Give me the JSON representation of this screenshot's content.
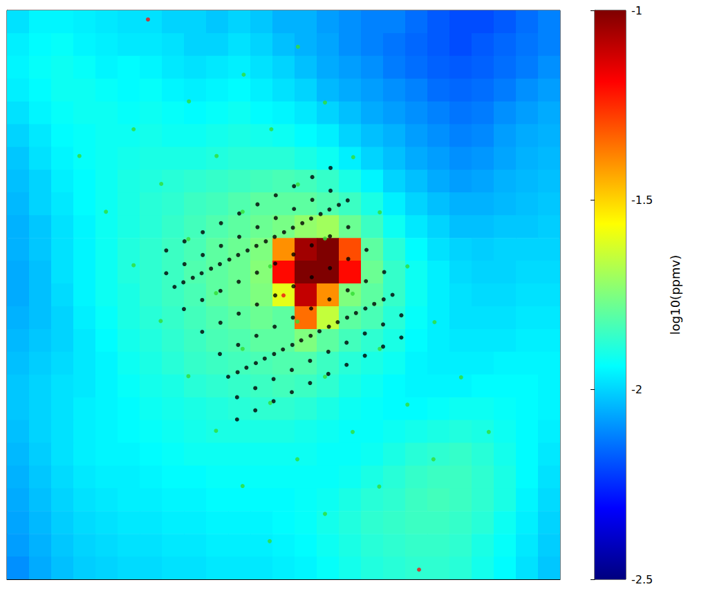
{
  "chart_data": {
    "type": "heatmap",
    "xlim": [
      0,
      100
    ],
    "ylim": [
      0,
      100
    ],
    "tick_labels": false,
    "grid": false,
    "colorbar": {
      "label": "log10(ppmv)",
      "range": [
        -2.5,
        -1
      ],
      "ticks": [
        -2.5,
        -2,
        -1.5,
        -1
      ]
    },
    "cells": [
      [
        -1.98,
        -1.95,
        -1.95,
        -1.96,
        -1.97,
        -1.98,
        -1.98,
        -2.0,
        -2.0,
        -2.02,
        -2.0,
        -2.02,
        -2.05,
        -2.05,
        -2.08,
        -2.1,
        -2.12,
        -2.12,
        -2.15,
        -2.18,
        -2.2,
        -2.2,
        -2.18,
        -2.15,
        -2.12
      ],
      [
        -1.96,
        -1.94,
        -1.93,
        -1.95,
        -1.96,
        -1.97,
        -1.97,
        -1.98,
        -2.0,
        -2.0,
        -1.98,
        -2.0,
        -2.03,
        -2.05,
        -2.07,
        -2.1,
        -2.12,
        -2.14,
        -2.16,
        -2.18,
        -2.2,
        -2.18,
        -2.16,
        -2.14,
        -2.12
      ],
      [
        -1.95,
        -1.93,
        -1.92,
        -1.93,
        -1.95,
        -1.94,
        -1.95,
        -1.97,
        -1.98,
        -1.97,
        -1.96,
        -1.98,
        -2.0,
        -2.03,
        -2.06,
        -2.08,
        -2.1,
        -2.13,
        -2.15,
        -2.17,
        -2.18,
        -2.17,
        -2.15,
        -2.13,
        -2.1
      ],
      [
        -1.96,
        -1.94,
        -1.92,
        -1.92,
        -1.93,
        -1.94,
        -1.93,
        -1.95,
        -1.96,
        -1.95,
        -1.94,
        -1.96,
        -1.98,
        -2.0,
        -2.04,
        -2.06,
        -2.08,
        -2.1,
        -2.12,
        -2.15,
        -2.16,
        -2.15,
        -2.13,
        -2.1,
        -2.08
      ],
      [
        -1.98,
        -1.95,
        -1.93,
        -1.92,
        -1.92,
        -1.93,
        -1.92,
        -1.93,
        -1.94,
        -1.93,
        -1.92,
        -1.94,
        -1.95,
        -1.97,
        -2.0,
        -2.03,
        -2.06,
        -2.08,
        -2.1,
        -2.12,
        -2.14,
        -2.13,
        -2.1,
        -2.08,
        -2.06
      ],
      [
        -2.0,
        -1.97,
        -1.94,
        -1.93,
        -1.92,
        -1.92,
        -1.91,
        -1.92,
        -1.92,
        -1.91,
        -1.9,
        -1.91,
        -1.92,
        -1.94,
        -1.96,
        -2.0,
        -2.03,
        -2.05,
        -2.08,
        -2.1,
        -2.12,
        -2.11,
        -2.08,
        -2.06,
        -2.05
      ],
      [
        -2.02,
        -1.98,
        -1.95,
        -1.93,
        -1.92,
        -1.91,
        -1.9,
        -1.9,
        -1.9,
        -1.89,
        -1.88,
        -1.88,
        -1.88,
        -1.9,
        -1.92,
        -1.96,
        -2.0,
        -2.03,
        -2.06,
        -2.08,
        -2.1,
        -2.09,
        -2.07,
        -2.05,
        -2.04
      ],
      [
        -2.03,
        -2.0,
        -1.96,
        -1.94,
        -1.92,
        -1.9,
        -1.89,
        -1.88,
        -1.87,
        -1.86,
        -1.85,
        -1.84,
        -1.83,
        -1.84,
        -1.86,
        -1.9,
        -1.95,
        -2.0,
        -2.03,
        -2.06,
        -2.08,
        -2.07,
        -2.05,
        -2.04,
        -2.03
      ],
      [
        -2.04,
        -2.0,
        -1.97,
        -1.94,
        -1.92,
        -1.9,
        -1.88,
        -1.87,
        -1.85,
        -1.84,
        -1.82,
        -1.8,
        -1.8,
        -1.8,
        -1.82,
        -1.85,
        -1.9,
        -1.96,
        -2.0,
        -2.03,
        -2.05,
        -2.05,
        -2.04,
        -2.03,
        -2.02
      ],
      [
        -2.05,
        -2.02,
        -1.98,
        -1.95,
        -1.92,
        -1.9,
        -1.88,
        -1.86,
        -1.84,
        -1.82,
        -1.8,
        -1.78,
        -1.76,
        -1.72,
        -1.7,
        -1.78,
        -1.85,
        -1.92,
        -1.97,
        -2.0,
        -2.03,
        -2.03,
        -2.02,
        -2.02,
        -2.01
      ],
      [
        -2.05,
        -2.02,
        -1.98,
        -1.95,
        -1.92,
        -1.89,
        -1.87,
        -1.85,
        -1.83,
        -1.8,
        -1.78,
        -1.75,
        -1.4,
        -1.05,
        -1.0,
        -1.3,
        -1.8,
        -1.88,
        -1.94,
        -1.98,
        -2.0,
        -2.01,
        -2.0,
        -2.0,
        -2.0
      ],
      [
        -2.06,
        -2.03,
        -1.98,
        -1.95,
        -1.92,
        -1.89,
        -1.87,
        -1.85,
        -1.82,
        -1.8,
        -1.78,
        -1.74,
        -1.2,
        -1.0,
        -1.0,
        -1.2,
        -1.78,
        -1.86,
        -1.92,
        -1.96,
        -1.99,
        -2.0,
        -2.0,
        -1.99,
        -1.99
      ],
      [
        -2.06,
        -2.03,
        -1.99,
        -1.95,
        -1.92,
        -1.9,
        -1.87,
        -1.85,
        -1.83,
        -1.8,
        -1.78,
        -1.75,
        -1.6,
        -1.1,
        -1.4,
        -1.75,
        -1.8,
        -1.86,
        -1.92,
        -1.96,
        -1.98,
        -1.99,
        -1.99,
        -1.98,
        -1.98
      ],
      [
        -2.05,
        -2.03,
        -2.0,
        -1.96,
        -1.93,
        -1.9,
        -1.88,
        -1.86,
        -1.84,
        -1.82,
        -1.8,
        -1.78,
        -1.8,
        -1.35,
        -1.65,
        -1.8,
        -1.83,
        -1.88,
        -1.93,
        -1.96,
        -1.98,
        -1.98,
        -1.98,
        -1.97,
        -1.97
      ],
      [
        -2.04,
        -2.02,
        -2.0,
        -1.97,
        -1.94,
        -1.91,
        -1.89,
        -1.87,
        -1.85,
        -1.83,
        -1.82,
        -1.8,
        -1.8,
        -1.75,
        -1.8,
        -1.84,
        -1.87,
        -1.9,
        -1.94,
        -1.96,
        -1.97,
        -1.97,
        -1.97,
        -1.96,
        -1.96
      ],
      [
        -2.03,
        -2.01,
        -1.99,
        -1.97,
        -1.95,
        -1.92,
        -1.9,
        -1.88,
        -1.86,
        -1.85,
        -1.84,
        -1.83,
        -1.82,
        -1.82,
        -1.85,
        -1.88,
        -1.9,
        -1.92,
        -1.95,
        -1.96,
        -1.96,
        -1.96,
        -1.95,
        -1.95,
        -1.95
      ],
      [
        -2.02,
        -2.0,
        -1.98,
        -1.97,
        -1.95,
        -1.93,
        -1.91,
        -1.9,
        -1.88,
        -1.87,
        -1.86,
        -1.85,
        -1.84,
        -1.85,
        -1.87,
        -1.9,
        -1.92,
        -1.94,
        -1.95,
        -1.95,
        -1.95,
        -1.94,
        -1.94,
        -1.94,
        -1.95
      ],
      [
        -2.02,
        -2.0,
        -1.98,
        -1.96,
        -1.95,
        -1.94,
        -1.92,
        -1.91,
        -1.9,
        -1.89,
        -1.88,
        -1.87,
        -1.87,
        -1.88,
        -1.9,
        -1.92,
        -1.93,
        -1.94,
        -1.94,
        -1.93,
        -1.92,
        -1.92,
        -1.93,
        -1.94,
        -1.95
      ],
      [
        -2.03,
        -2.0,
        -1.98,
        -1.96,
        -1.95,
        -1.94,
        -1.93,
        -1.92,
        -1.91,
        -1.9,
        -1.9,
        -1.9,
        -1.9,
        -1.91,
        -1.92,
        -1.93,
        -1.93,
        -1.92,
        -1.91,
        -1.9,
        -1.89,
        -1.9,
        -1.92,
        -1.94,
        -1.96
      ],
      [
        -2.04,
        -2.01,
        -1.98,
        -1.96,
        -1.95,
        -1.95,
        -1.94,
        -1.93,
        -1.92,
        -1.92,
        -1.92,
        -1.92,
        -1.92,
        -1.92,
        -1.93,
        -1.93,
        -1.92,
        -1.9,
        -1.88,
        -1.87,
        -1.86,
        -1.88,
        -1.91,
        -1.94,
        -1.97
      ],
      [
        -2.05,
        -2.02,
        -1.99,
        -1.97,
        -1.96,
        -1.96,
        -1.95,
        -1.94,
        -1.94,
        -1.93,
        -1.93,
        -1.93,
        -1.93,
        -1.93,
        -1.93,
        -1.92,
        -1.9,
        -1.88,
        -1.86,
        -1.85,
        -1.85,
        -1.87,
        -1.9,
        -1.94,
        -1.98
      ],
      [
        -2.06,
        -2.03,
        -2.0,
        -1.98,
        -1.97,
        -1.96,
        -1.96,
        -1.95,
        -1.95,
        -1.94,
        -1.94,
        -1.94,
        -1.94,
        -1.93,
        -1.92,
        -1.9,
        -1.88,
        -1.87,
        -1.85,
        -1.84,
        -1.85,
        -1.87,
        -1.9,
        -1.95,
        -1.99
      ],
      [
        -2.07,
        -2.04,
        -2.01,
        -1.99,
        -1.98,
        -1.97,
        -1.97,
        -1.96,
        -1.96,
        -1.95,
        -1.95,
        -1.95,
        -1.94,
        -1.93,
        -1.91,
        -1.89,
        -1.87,
        -1.86,
        -1.85,
        -1.85,
        -1.86,
        -1.88,
        -1.92,
        -1.96,
        -2.0
      ],
      [
        -2.08,
        -2.05,
        -2.02,
        -2.0,
        -1.99,
        -1.98,
        -1.98,
        -1.97,
        -1.97,
        -1.96,
        -1.96,
        -1.96,
        -1.95,
        -1.94,
        -1.92,
        -1.9,
        -1.88,
        -1.87,
        -1.86,
        -1.86,
        -1.87,
        -1.9,
        -1.93,
        -1.97,
        -2.01
      ],
      [
        -2.1,
        -2.06,
        -2.03,
        -2.01,
        -2.0,
        -1.99,
        -1.99,
        -1.98,
        -1.98,
        -1.97,
        -1.97,
        -1.97,
        -1.96,
        -1.95,
        -1.93,
        -1.91,
        -1.89,
        -1.88,
        -1.87,
        -1.87,
        -1.88,
        -1.91,
        -1.94,
        -1.98,
        -2.02
      ]
    ],
    "series": [
      {
        "type": "scatter",
        "color": "#000000",
        "marker": "circle",
        "x": [
          28.8,
          32.1,
          35.4,
          38.7,
          42.0,
          45.3,
          48.6,
          51.9,
          55.2,
          58.5,
          28.8,
          32.1,
          35.4,
          38.7,
          42.0,
          45.3,
          48.6,
          51.9,
          55.2,
          58.5,
          30.3,
          31.9,
          33.6,
          35.2,
          36.9,
          38.5,
          40.2,
          41.8,
          43.5,
          45.1,
          46.8,
          48.4,
          50.1,
          51.7,
          53.4,
          55.0,
          56.7,
          58.3,
          60.0,
          61.6,
          32.0,
          35.3,
          38.6,
          41.9,
          45.2,
          48.5,
          51.8,
          55.1,
          58.4,
          61.7,
          35.3,
          38.6,
          41.9,
          45.2,
          48.5,
          51.8,
          55.1,
          58.4,
          61.7,
          65.0,
          38.5,
          41.8,
          45.1,
          48.4,
          51.7,
          55.0,
          58.3,
          61.6,
          64.9,
          68.2,
          40.0,
          41.7,
          43.3,
          45.0,
          46.6,
          48.3,
          49.9,
          51.6,
          53.2,
          54.9,
          56.5,
          58.2,
          59.8,
          61.5,
          63.1,
          64.8,
          66.4,
          68.1,
          69.7,
          41.6,
          44.9,
          48.2,
          51.5,
          54.8,
          58.1,
          61.4,
          64.7,
          68.0,
          71.3,
          41.6,
          44.9,
          48.2,
          51.5,
          54.8,
          58.1,
          61.4,
          64.7,
          68.0,
          71.3
        ],
        "y": [
          57.8,
          59.4,
          61.0,
          62.6,
          64.3,
          65.9,
          67.5,
          69.1,
          70.7,
          72.3,
          53.8,
          55.4,
          57.0,
          58.6,
          60.2,
          61.9,
          63.5,
          65.1,
          66.7,
          68.3,
          51.4,
          52.2,
          53.0,
          53.8,
          54.6,
          55.4,
          56.2,
          57.0,
          57.8,
          58.6,
          59.4,
          60.2,
          61.0,
          61.8,
          62.6,
          63.4,
          64.2,
          65.0,
          65.8,
          66.6,
          47.5,
          49.1,
          50.7,
          52.3,
          53.9,
          55.5,
          57.1,
          58.7,
          60.3,
          61.9,
          43.5,
          45.1,
          46.7,
          48.3,
          49.9,
          51.5,
          53.1,
          54.7,
          56.3,
          57.9,
          39.6,
          41.2,
          42.8,
          44.4,
          46.0,
          47.6,
          49.2,
          50.8,
          52.4,
          54.0,
          35.6,
          36.4,
          37.2,
          38.0,
          38.8,
          39.6,
          40.4,
          41.2,
          42.0,
          42.8,
          43.6,
          44.4,
          45.2,
          46.0,
          46.8,
          47.6,
          48.4,
          49.2,
          50.0,
          32.0,
          33.6,
          35.2,
          36.8,
          38.4,
          40.0,
          41.6,
          43.2,
          44.8,
          46.4,
          28.1,
          29.7,
          31.3,
          32.9,
          34.5,
          36.1,
          37.7,
          39.3,
          40.9,
          42.5
        ]
      },
      {
        "type": "scatter",
        "color": "#33dd33",
        "marker": "circle",
        "x": [
          52.6,
          42.8,
          57.5,
          32.9,
          22.9,
          47.8,
          13.1,
          37.9,
          62.6,
          27.9,
          52.6,
          17.9,
          42.6,
          67.4,
          32.8,
          57.5,
          22.9,
          47.6,
          72.4,
          37.8,
          62.5,
          27.8,
          52.5,
          77.3,
          42.6,
          67.4,
          32.8,
          57.5,
          82.1,
          47.6,
          72.4,
          37.8,
          62.5,
          87.1,
          52.5,
          77.1,
          42.6,
          67.3,
          57.5,
          47.5
        ],
        "y": [
          93.6,
          88.7,
          83.8,
          84.0,
          79.1,
          79.1,
          74.4,
          74.4,
          74.2,
          69.5,
          69.4,
          64.6,
          64.6,
          64.5,
          59.8,
          59.9,
          55.2,
          55.0,
          55.0,
          50.3,
          50.2,
          45.4,
          45.3,
          45.2,
          40.5,
          40.5,
          35.7,
          35.6,
          35.5,
          31.0,
          30.7,
          26.1,
          25.9,
          25.9,
          21.1,
          21.1,
          16.4,
          16.3,
          11.5,
          6.7
        ]
      },
      {
        "type": "scatter",
        "color": "#ee1111",
        "marker": "circle",
        "x": [
          25.5,
          50.0,
          74.5
        ],
        "y": [
          98.4,
          49.9,
          1.7
        ]
      }
    ]
  }
}
